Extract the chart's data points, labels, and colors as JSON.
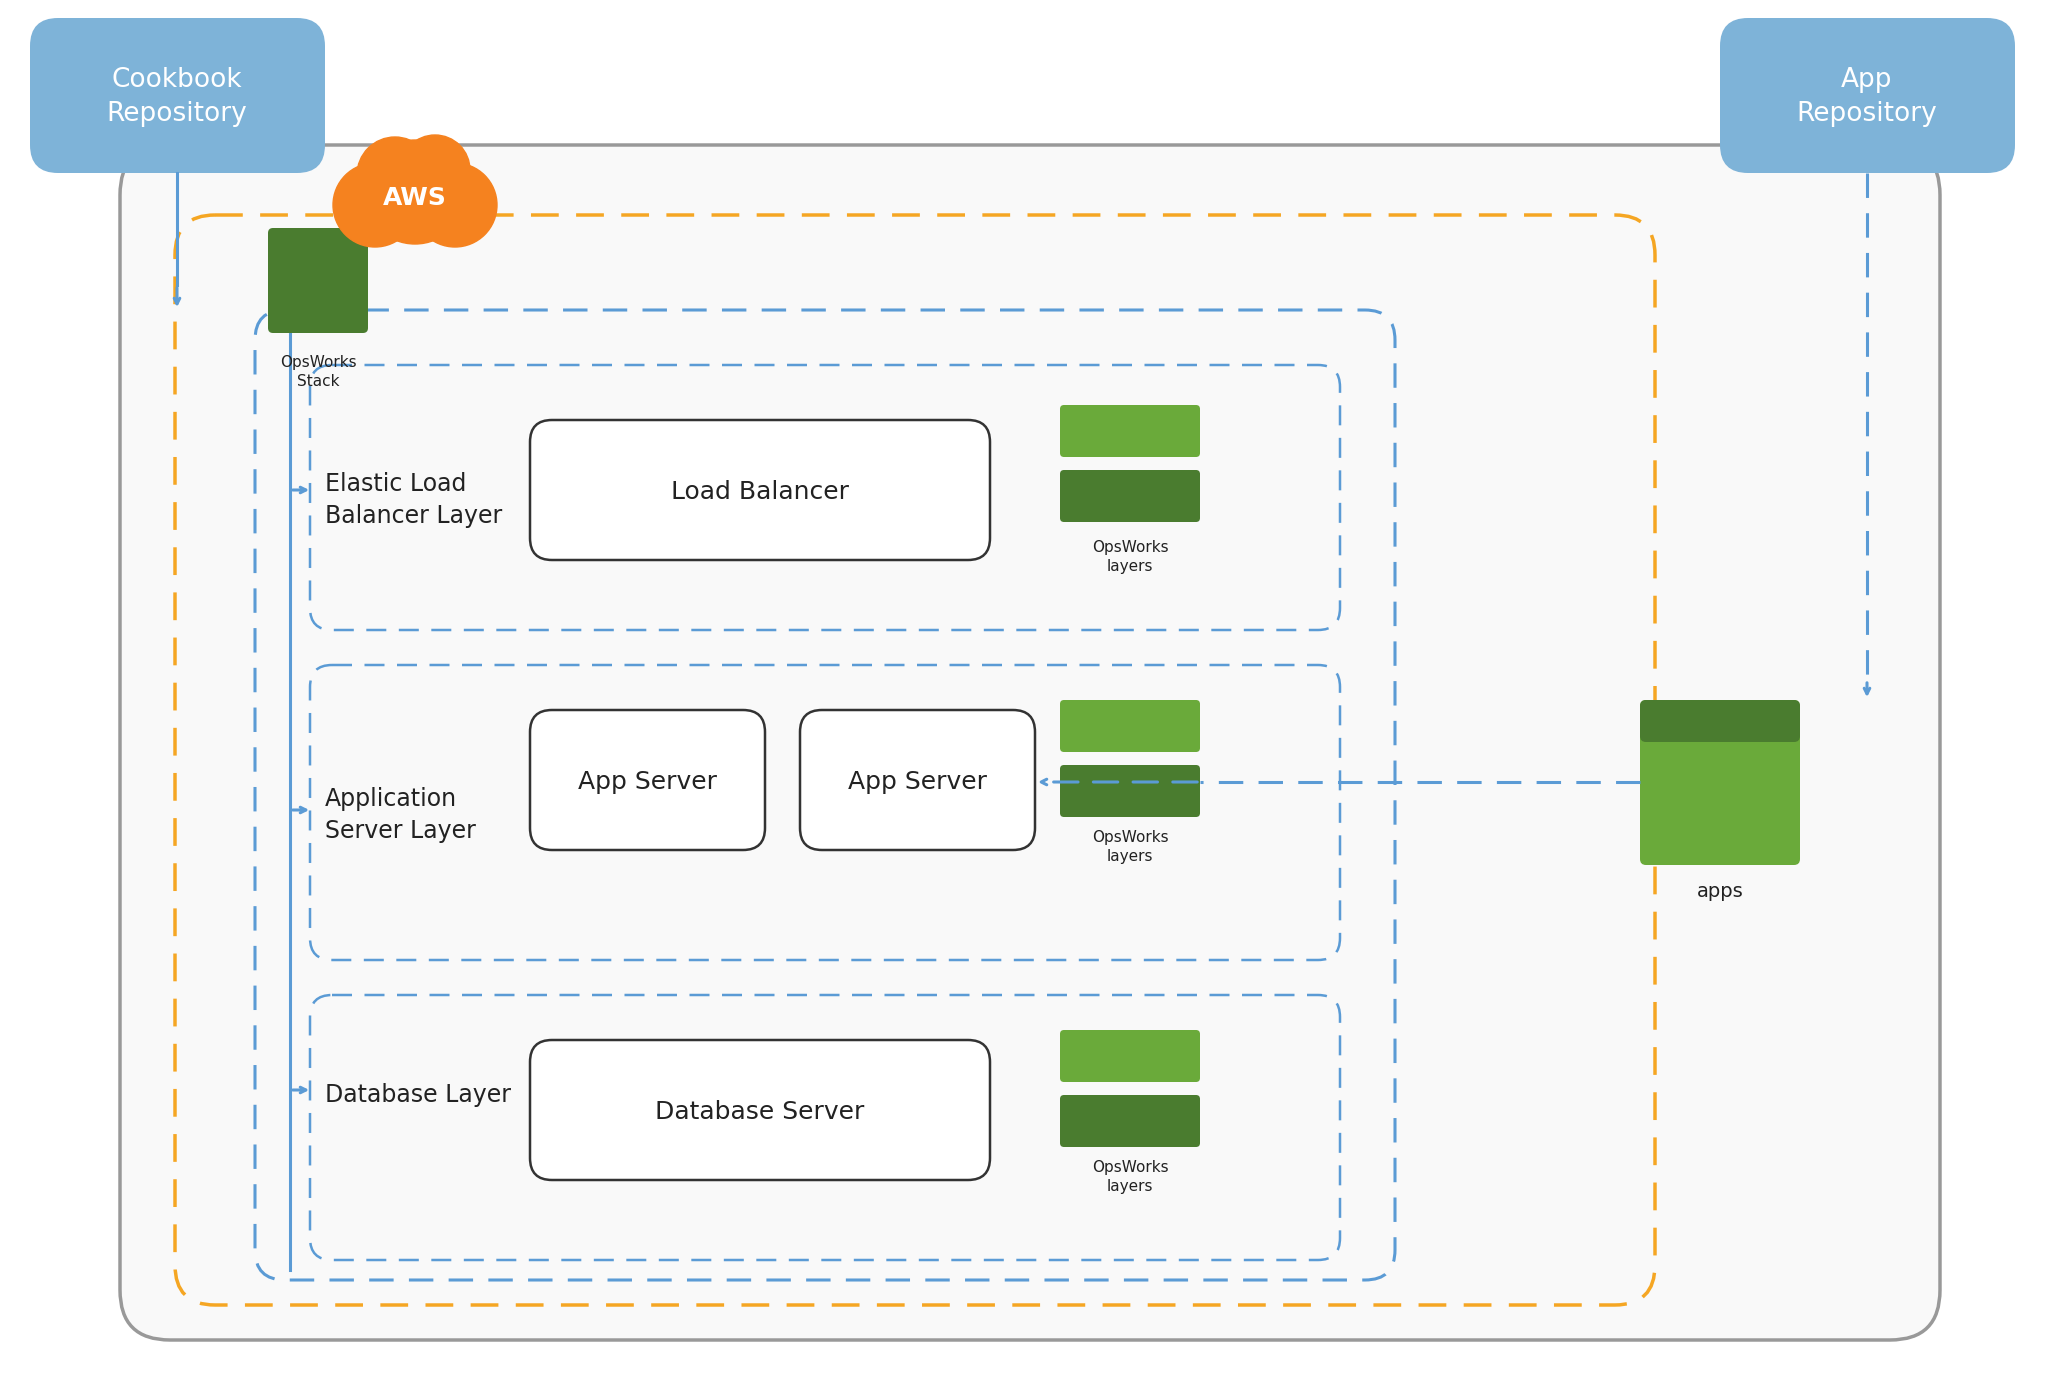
{
  "bg_color": "#ffffff",
  "blue_box_color": "#7eb3d8",
  "blue_box_text_color": "#ffffff",
  "outer_box_color": "#aaaaaa",
  "orange_dash_color": "#f5a623",
  "blue_dash_color": "#5b9bd5",
  "green_dark": "#4a7c2f",
  "green_medium": "#6aaa3a",
  "server_box_edge": "#333333",
  "text_color": "#222222",
  "aws_orange": "#f5821f",
  "cookbook_repo": "Cookbook\nRepository",
  "app_repo": "App\nRepository",
  "opsworks_stack": "OpsWorks\nStack",
  "opsworks_layers": "OpsWorks\nlayers",
  "apps_label": "apps",
  "load_balancer_layer": "Elastic Load\nBalancer Layer",
  "app_server_layer": "Application\nServer Layer",
  "database_layer": "Database Layer",
  "load_balancer": "Load Balancer",
  "app_server1": "App Server",
  "app_server2": "App Server",
  "database_server": "Database Server",
  "aws_label": "AWS"
}
